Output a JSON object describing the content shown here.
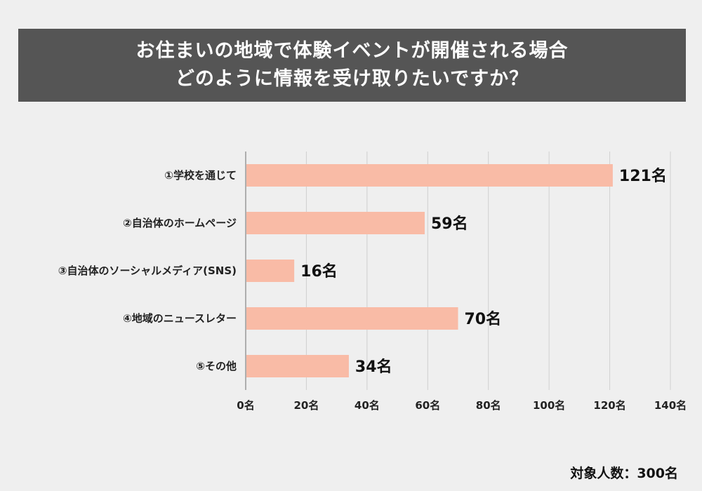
{
  "title_lines": [
    "お住まいの地域で体験イベントが開催される場合",
    "どのように情報を受け取りたいですか？"
  ],
  "footer": "対象人数：300名",
  "colors": {
    "bar": "#f9bba6",
    "title_bg": "#555555",
    "grid": "#d0d0d0",
    "axis": "#999999"
  },
  "chart_data": {
    "type": "bar",
    "orientation": "horizontal",
    "categories": [
      "①学校を通じて",
      "②自治体のホームページ",
      "③自治体のソーシャルメディア(SNS)",
      "④地域のニュースレター",
      "⑤その他"
    ],
    "values": [
      121,
      59,
      16,
      70,
      34
    ],
    "value_labels": [
      "121名",
      "59名",
      "16名",
      "70名",
      "34名"
    ],
    "xlim": [
      0,
      140
    ],
    "ticks": [
      0,
      20,
      40,
      60,
      80,
      100,
      120,
      140
    ],
    "tick_labels": [
      "0名",
      "20名",
      "40名",
      "60名",
      "80名",
      "100名",
      "120名",
      "140名"
    ],
    "grid": true,
    "legend": false
  }
}
